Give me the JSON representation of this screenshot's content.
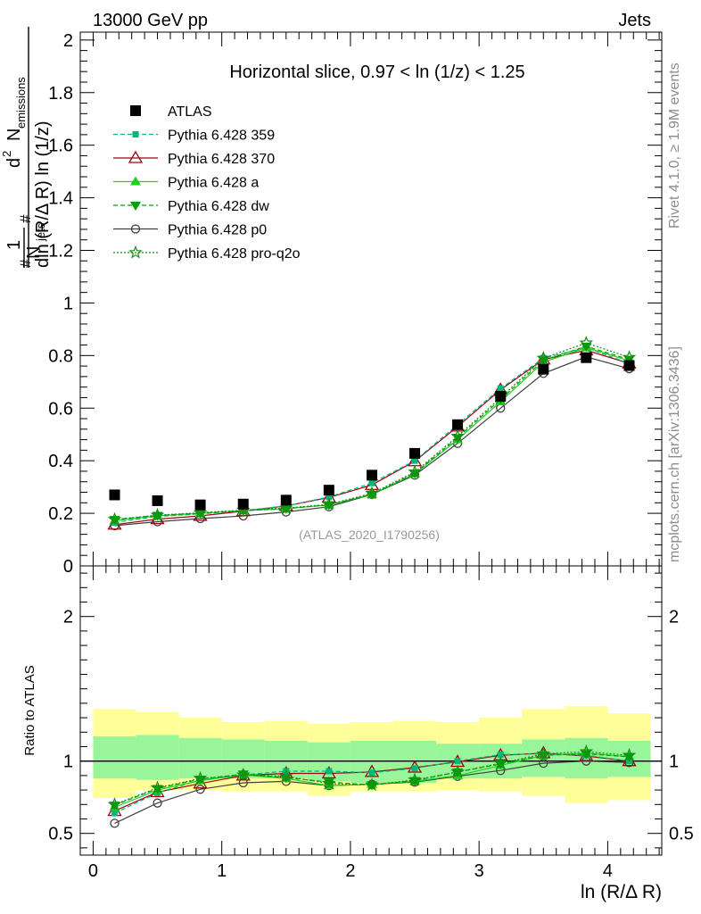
{
  "header": {
    "left": "13000 GeV pp",
    "right": "Jets"
  },
  "side_labels": {
    "top": "Rivet 4.1.0, ≥ 1.9M events",
    "bottom": "mcplots.cern.ch [arXiv:1306.3436]"
  },
  "colors": {
    "atlas": "#000000",
    "p359": "#00b87a",
    "p370": "#a00010",
    "a": "#1fd01f",
    "dw": "#00a000",
    "p0": "#404040",
    "pq2o": "#1a8a1a",
    "band_inner": "#99f599",
    "band_outer": "#ffff99"
  },
  "chart_data": [
    {
      "type": "line",
      "title": "Horizontal slice, 0.97 < ln (1/z) < 1.25",
      "watermark": "(ATLAS_2020_I1790256)",
      "ylabel": {
        "one": "1",
        "hash": "#",
        "njets": "N",
        "njets_sub": "jets",
        "d2": "d",
        "d2_sup": "2",
        "nem": "N",
        "nem_sub": "emissions",
        "hash2": "#",
        "den": "dln (R/Δ R) ln (1/z)"
      },
      "xlim": [
        -0.1,
        4.42
      ],
      "ylim": [
        0,
        2.03
      ],
      "yticks": [
        0,
        0.2,
        0.4,
        0.6,
        0.8,
        1,
        1.2,
        1.4,
        1.6,
        1.8,
        2
      ],
      "ytick_labels": [
        "0",
        "0.2",
        "0.4",
        "0.6",
        "0.8",
        "1",
        "1.2",
        "1.4",
        "1.6",
        "1.8",
        "2"
      ],
      "x": [
        0.167,
        0.5,
        0.833,
        1.167,
        1.5,
        1.833,
        2.167,
        2.5,
        2.833,
        3.167,
        3.5,
        3.833,
        4.167
      ],
      "legend_position": "top-left",
      "series": [
        {
          "name": "ATLAS",
          "key": "atlas",
          "values": [
            0.27,
            0.248,
            0.232,
            0.235,
            0.25,
            0.288,
            0.345,
            0.428,
            0.537,
            0.645,
            0.748,
            0.792,
            0.762
          ]
        },
        {
          "name": "Pythia 6.428 359",
          "key": "p359",
          "values": [
            0.165,
            0.188,
            0.198,
            0.21,
            0.228,
            0.262,
            0.315,
            0.4,
            0.537,
            0.675,
            0.79,
            0.83,
            0.77
          ]
        },
        {
          "name": "Pythia 6.428 370",
          "key": "p370",
          "values": [
            0.157,
            0.178,
            0.19,
            0.208,
            0.228,
            0.26,
            0.308,
            0.398,
            0.53,
            0.67,
            0.785,
            0.82,
            0.77
          ]
        },
        {
          "name": "Pythia 6.428 a",
          "key": "a",
          "values": [
            0.172,
            0.19,
            0.2,
            0.21,
            0.218,
            0.232,
            0.272,
            0.35,
            0.48,
            0.625,
            0.775,
            0.83,
            0.78
          ]
        },
        {
          "name": "Pythia 6.428 dw",
          "key": "dw",
          "values": [
            0.176,
            0.192,
            0.2,
            0.21,
            0.218,
            0.232,
            0.273,
            0.352,
            0.487,
            0.633,
            0.782,
            0.835,
            0.785
          ]
        },
        {
          "name": "Pythia 6.428 p0",
          "key": "p0",
          "values": [
            0.153,
            0.168,
            0.18,
            0.19,
            0.205,
            0.225,
            0.272,
            0.345,
            0.466,
            0.6,
            0.732,
            0.795,
            0.75
          ]
        },
        {
          "name": "Pythia 6.428 pro-q2o",
          "key": "pq2o",
          "values": [
            0.177,
            0.193,
            0.202,
            0.212,
            0.22,
            0.234,
            0.276,
            0.357,
            0.493,
            0.64,
            0.79,
            0.848,
            0.793
          ]
        }
      ]
    },
    {
      "type": "line",
      "title": "",
      "xlabel": "ln (R/Δ R)",
      "ylabel": "Ratio to ATLAS",
      "xlim": [
        -0.1,
        4.42
      ],
      "ylim": [
        0.35,
        2.35
      ],
      "yticks": [
        0.5,
        1,
        2
      ],
      "ytick_labels": [
        "0.5",
        "1",
        "2"
      ],
      "xticks": [
        0,
        1,
        2,
        3,
        4
      ],
      "xtick_labels": [
        "0",
        "1",
        "2",
        "3",
        "4"
      ],
      "reference_line": 1,
      "x": [
        0.167,
        0.5,
        0.833,
        1.167,
        1.5,
        1.833,
        2.167,
        2.5,
        2.833,
        3.167,
        3.5,
        3.833,
        4.167
      ],
      "bands": {
        "edges": [
          0,
          0.333,
          0.667,
          1,
          1.333,
          1.667,
          2,
          2.333,
          2.667,
          3,
          3.333,
          3.667,
          4,
          4.333
        ],
        "inner_lo": [
          0.88,
          0.87,
          0.88,
          0.88,
          0.88,
          0.86,
          0.85,
          0.85,
          0.88,
          0.88,
          0.89,
          0.88,
          0.89
        ],
        "inner_hi": [
          1.17,
          1.18,
          1.16,
          1.15,
          1.14,
          1.13,
          1.14,
          1.14,
          1.12,
          1.12,
          1.15,
          1.16,
          1.14
        ],
        "outer_lo": [
          0.745,
          0.8,
          0.8,
          0.79,
          0.79,
          0.76,
          0.79,
          0.79,
          0.8,
          0.79,
          0.76,
          0.71,
          0.73
        ],
        "outer_hi": [
          1.36,
          1.34,
          1.3,
          1.27,
          1.28,
          1.26,
          1.27,
          1.28,
          1.27,
          1.3,
          1.36,
          1.38,
          1.33
        ]
      },
      "series": [
        {
          "name": "Pythia 6.428 359",
          "key": "p359",
          "values": [
            0.64,
            0.78,
            0.87,
            0.905,
            0.93,
            0.93,
            0.92,
            0.95,
            1.0,
            1.045,
            1.05,
            1.04,
            1.0
          ]
        },
        {
          "name": "Pythia 6.428 370",
          "key": "p370",
          "values": [
            0.655,
            0.785,
            0.845,
            0.9,
            0.915,
            0.915,
            0.925,
            0.955,
            0.995,
            1.04,
            1.055,
            1.035,
            1.0
          ]
        },
        {
          "name": "Pythia 6.428 a",
          "key": "a",
          "values": [
            0.68,
            0.8,
            0.865,
            0.905,
            0.88,
            0.83,
            0.84,
            0.86,
            0.9,
            0.97,
            1.04,
            1.055,
            1.03
          ]
        },
        {
          "name": "Pythia 6.428 dw",
          "key": "dw",
          "values": [
            0.695,
            0.81,
            0.875,
            0.91,
            0.885,
            0.855,
            0.835,
            0.865,
            0.925,
            0.98,
            1.04,
            1.05,
            1.03
          ]
        },
        {
          "name": "Pythia 6.428 p0",
          "key": "p0",
          "values": [
            0.57,
            0.71,
            0.805,
            0.85,
            0.86,
            0.83,
            0.84,
            0.855,
            0.895,
            0.935,
            0.985,
            1.0,
            0.99
          ]
        },
        {
          "name": "Pythia 6.428 pro-q2o",
          "key": "pq2o",
          "values": [
            0.7,
            0.815,
            0.88,
            0.905,
            0.895,
            0.845,
            0.835,
            0.87,
            0.925,
            0.985,
            1.05,
            1.065,
            1.04
          ]
        }
      ]
    }
  ]
}
